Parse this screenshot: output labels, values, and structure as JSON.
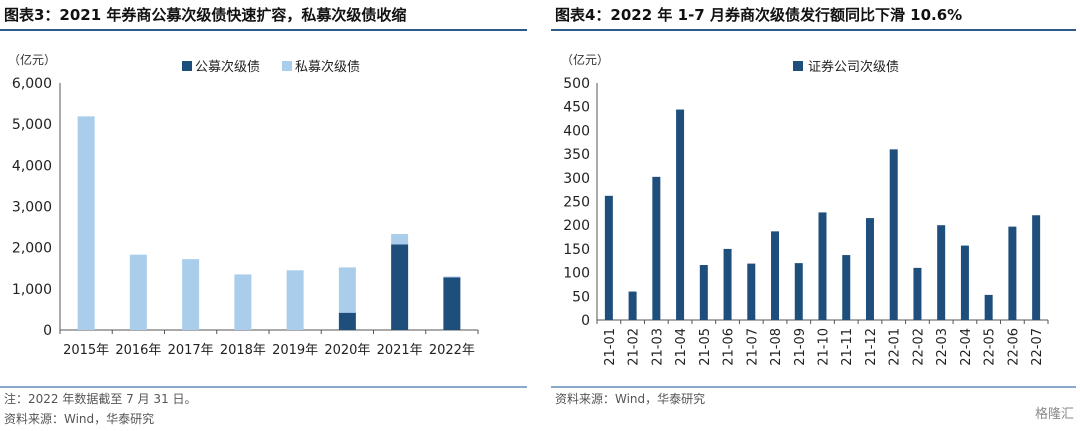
{
  "charts": [
    {
      "title": "图表3：2021 年券商公募次级债快速扩容，私募次级债收缩",
      "notes": [
        "注：2022 年数据截至 7 月 31 日。",
        "资料来源：Wind，华泰研究"
      ]
    },
    {
      "title": "图表4：2022 年 1-7 月券商次级债发行额同比下滑 10.6%",
      "notes": [
        "资料来源：Wind，华泰研究"
      ]
    }
  ],
  "watermark": "格隆汇",
  "colors": {
    "dark": "#1e4f7c",
    "light": "#a9cdeb",
    "axis": "#555555",
    "rule": "#2e5a88"
  },
  "chart_data": [
    {
      "type": "bar",
      "stacked": true,
      "unit_label": "（亿元）",
      "categories": [
        "2015年",
        "2016年",
        "2017年",
        "2018年",
        "2019年",
        "2020年",
        "2021年",
        "2022年"
      ],
      "series": [
        {
          "name": "公募次级债",
          "values": [
            0,
            0,
            0,
            0,
            0,
            420,
            2080,
            1280
          ]
        },
        {
          "name": "私募次级债",
          "values": [
            5190,
            1830,
            1720,
            1350,
            1450,
            1100,
            250,
            20
          ]
        }
      ],
      "ylim": [
        0,
        6000
      ],
      "yticks": [
        "0",
        "1,000",
        "2,000",
        "3,000",
        "4,000",
        "5,000",
        "6,000"
      ],
      "legend": "top"
    },
    {
      "type": "bar",
      "unit_label": "（亿元）",
      "categories": [
        "21-01",
        "21-02",
        "21-03",
        "21-04",
        "21-05",
        "21-06",
        "21-07",
        "21-08",
        "21-09",
        "21-10",
        "21-11",
        "21-12",
        "22-01",
        "22-02",
        "22-03",
        "22-04",
        "22-05",
        "22-06",
        "22-07"
      ],
      "series": [
        {
          "name": "证券公司次级债",
          "values": [
            262,
            60,
            302,
            444,
            116,
            150,
            119,
            187,
            120,
            227,
            137,
            215,
            360,
            110,
            200,
            157,
            53,
            197,
            221
          ]
        }
      ],
      "ylim": [
        0,
        500
      ],
      "yticks": [
        "0",
        "50",
        "100",
        "150",
        "200",
        "250",
        "300",
        "350",
        "400",
        "450",
        "500"
      ],
      "legend": "top"
    }
  ]
}
